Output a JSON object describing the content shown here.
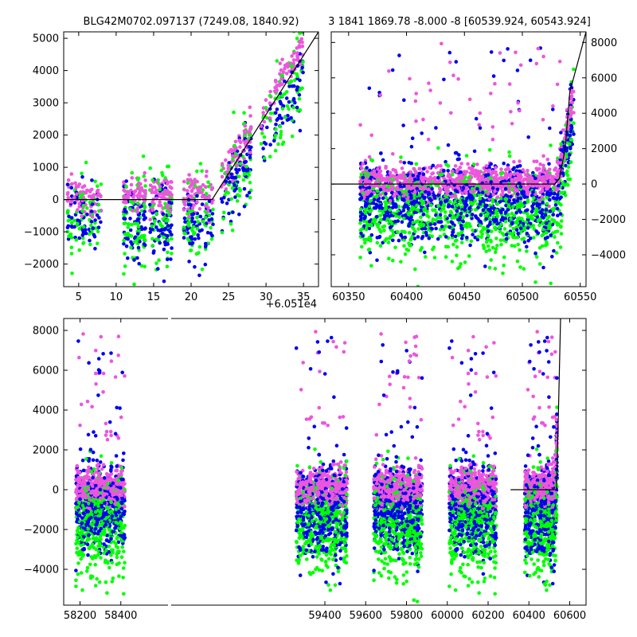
{
  "figure": {
    "title_left": "BLG42M0702.097137 (7249.08, 1840.92)",
    "title_right": "3 1841 1869.78 -8.000 -8 [60539.924, 60543.924]"
  },
  "colors": {
    "green": "#00ff00",
    "blue": "#0000ee",
    "pink": "#ee55dd",
    "model": "#000000"
  },
  "chart_data": [
    {
      "id": "top-left",
      "type": "scatter",
      "x_offset_label": "+6.051e4",
      "xlim": [
        3,
        37
      ],
      "ylim": [
        -2700,
        5200
      ],
      "x_ticks": [
        5,
        10,
        15,
        20,
        25,
        30,
        35
      ],
      "y_ticks": [
        -2000,
        -1000,
        0,
        1000,
        2000,
        3000,
        4000,
        5000
      ],
      "model_line": {
        "x": [
          3,
          22.8,
          28,
          37
        ],
        "y": [
          0,
          0,
          1900,
          5200
        ]
      }
    },
    {
      "id": "top-right",
      "type": "scatter",
      "xlim": [
        60335,
        60555
      ],
      "ylim": [
        -5800,
        8600
      ],
      "x_ticks": [
        60350,
        60400,
        60450,
        60500,
        60550
      ],
      "y_ticks": [
        -4000,
        -2000,
        0,
        2000,
        4000,
        6000,
        8000
      ],
      "y_axis_side": "right",
      "model_line": {
        "x": [
          60335,
          60528,
          60532,
          60537,
          60541,
          60555
        ],
        "y": [
          0,
          0,
          300,
          2000,
          5200,
          8600
        ]
      }
    },
    {
      "id": "bottom",
      "type": "scatter",
      "xlim": [
        58120,
        60680
      ],
      "ylim": [
        -5800,
        8600
      ],
      "x_ticks": [
        58200,
        58400,
        59400,
        59600,
        59800,
        60000,
        60200,
        60400,
        60600
      ],
      "x_tick_labels": [
        "58200",
        "58400",
        "59400",
        "59600",
        "59800",
        "60000",
        "60200",
        "60400",
        "60600"
      ],
      "y_ticks": [
        -4000,
        -2000,
        0,
        2000,
        4000,
        6000,
        8000
      ],
      "seasons": [
        [
          58180,
          58420
        ],
        [
          59260,
          59510
        ],
        [
          59640,
          59880
        ],
        [
          60010,
          60240
        ],
        [
          60380,
          60540
        ]
      ],
      "model_line": {
        "x": [
          60310,
          60535,
          60545,
          60555
        ],
        "y": [
          0,
          0,
          4000,
          8600
        ]
      }
    }
  ]
}
